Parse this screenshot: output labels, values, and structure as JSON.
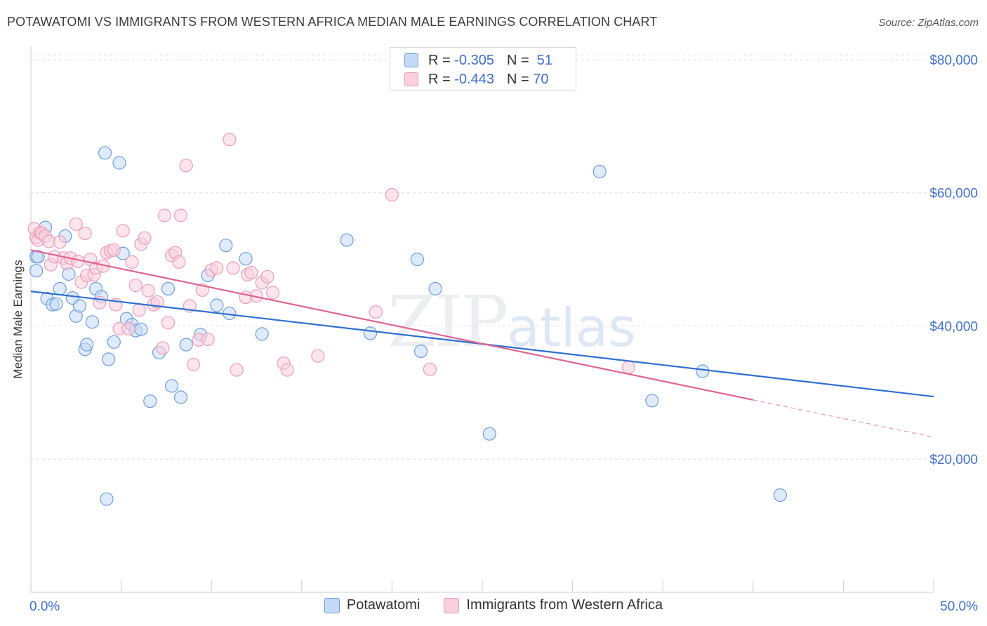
{
  "title": "POTAWATOMI VS IMMIGRANTS FROM WESTERN AFRICA MEDIAN MALE EARNINGS CORRELATION CHART",
  "source": "Source: ZipAtlas.com",
  "watermark": {
    "zip": "ZIP",
    "atlas": "atlas"
  },
  "legend": {
    "rows": [
      {
        "r_label": "R =",
        "r_value": "-0.305",
        "n_label": "N =",
        "n_value": "51",
        "color": "#a8c8ef"
      },
      {
        "r_label": "R =",
        "r_value": "-0.443",
        "n_label": "N =",
        "n_value": "70",
        "color": "#f5b8cb"
      }
    ]
  },
  "bottom_legend": [
    "Potawatomi",
    "Immigrants from Western Africa"
  ],
  "chart_data": {
    "type": "scatter",
    "xlabel": "",
    "ylabel": "Median Male Earnings",
    "xlim": [
      0,
      50
    ],
    "ylim": [
      0,
      82000
    ],
    "x_tick_labels": [
      "0.0%",
      "50.0%"
    ],
    "y_ticks": [
      20000,
      40000,
      60000,
      80000
    ],
    "y_tick_labels": [
      "$20,000",
      "$40,000",
      "$60,000",
      "$80,000"
    ],
    "grid": true,
    "series": [
      {
        "name": "Potawatomi",
        "color": "#6a9ee0",
        "fill": "#c5daf5",
        "line_color": "#2e6fd1",
        "trend": {
          "x": [
            0,
            50
          ],
          "y": [
            45200,
            29400
          ]
        },
        "points": [
          [
            0.3,
            48300
          ],
          [
            0.3,
            50400
          ],
          [
            0.8,
            54800
          ],
          [
            0.9,
            44100
          ],
          [
            1.2,
            43200
          ],
          [
            1.4,
            43300
          ],
          [
            1.6,
            45600
          ],
          [
            1.9,
            53500
          ],
          [
            2.1,
            47800
          ],
          [
            2.3,
            44200
          ],
          [
            2.5,
            41500
          ],
          [
            2.7,
            43000
          ],
          [
            3.0,
            36500
          ],
          [
            3.1,
            37200
          ],
          [
            3.4,
            40600
          ],
          [
            3.6,
            45600
          ],
          [
            3.9,
            44400
          ],
          [
            4.1,
            66000
          ],
          [
            4.3,
            35000
          ],
          [
            4.6,
            37600
          ],
          [
            4.9,
            64500
          ],
          [
            5.1,
            50900
          ],
          [
            5.3,
            41100
          ],
          [
            5.6,
            40200
          ],
          [
            5.8,
            39300
          ],
          [
            6.1,
            39500
          ],
          [
            6.6,
            28700
          ],
          [
            7.1,
            36000
          ],
          [
            7.6,
            45600
          ],
          [
            7.8,
            31000
          ],
          [
            8.3,
            29300
          ],
          [
            8.6,
            37200
          ],
          [
            9.4,
            38700
          ],
          [
            9.8,
            47600
          ],
          [
            10.3,
            43100
          ],
          [
            10.8,
            52100
          ],
          [
            11.0,
            41900
          ],
          [
            11.9,
            50100
          ],
          [
            12.8,
            38800
          ],
          [
            17.5,
            52900
          ],
          [
            18.8,
            38900
          ],
          [
            21.4,
            50000
          ],
          [
            21.6,
            36200
          ],
          [
            22.4,
            45600
          ],
          [
            25.4,
            23800
          ],
          [
            31.5,
            63200
          ],
          [
            34.4,
            28800
          ],
          [
            37.2,
            33200
          ],
          [
            41.5,
            14600
          ],
          [
            4.2,
            14000
          ],
          [
            0.4,
            50400
          ]
        ]
      },
      {
        "name": "Immigrants from Western Africa",
        "color": "#ee9cb6",
        "fill": "#f9d0dc",
        "line_color": "#e06492",
        "trend": {
          "x": [
            0,
            40
          ],
          "y": [
            51400,
            28900
          ]
        },
        "trend_dashed": {
          "x": [
            40,
            50
          ],
          "y": [
            28900,
            23300
          ]
        },
        "points": [
          [
            0.2,
            54600
          ],
          [
            0.3,
            53300
          ],
          [
            0.4,
            52900
          ],
          [
            0.5,
            54000
          ],
          [
            0.6,
            53900
          ],
          [
            0.8,
            53500
          ],
          [
            1.0,
            52700
          ],
          [
            1.1,
            49200
          ],
          [
            1.3,
            50400
          ],
          [
            1.6,
            52600
          ],
          [
            1.8,
            50200
          ],
          [
            2.0,
            49400
          ],
          [
            2.2,
            50200
          ],
          [
            2.5,
            55300
          ],
          [
            2.6,
            49700
          ],
          [
            2.8,
            46600
          ],
          [
            3.0,
            53900
          ],
          [
            3.1,
            47600
          ],
          [
            3.3,
            50000
          ],
          [
            3.5,
            47700
          ],
          [
            3.6,
            48700
          ],
          [
            3.8,
            43500
          ],
          [
            4.0,
            49000
          ],
          [
            4.2,
            51000
          ],
          [
            4.4,
            51300
          ],
          [
            4.6,
            51400
          ],
          [
            4.7,
            43200
          ],
          [
            4.9,
            39600
          ],
          [
            5.1,
            54300
          ],
          [
            5.4,
            39600
          ],
          [
            5.6,
            49600
          ],
          [
            5.8,
            46100
          ],
          [
            6.0,
            42400
          ],
          [
            6.1,
            52300
          ],
          [
            6.3,
            53200
          ],
          [
            6.5,
            45300
          ],
          [
            6.8,
            43200
          ],
          [
            7.0,
            43600
          ],
          [
            7.3,
            36700
          ],
          [
            7.4,
            56600
          ],
          [
            7.6,
            40500
          ],
          [
            7.8,
            50600
          ],
          [
            8.0,
            51000
          ],
          [
            8.2,
            49600
          ],
          [
            8.3,
            56600
          ],
          [
            8.6,
            64100
          ],
          [
            8.8,
            43000
          ],
          [
            9.0,
            34200
          ],
          [
            9.3,
            37900
          ],
          [
            9.5,
            45400
          ],
          [
            9.8,
            38000
          ],
          [
            10.0,
            48400
          ],
          [
            10.3,
            48700
          ],
          [
            11.0,
            68000
          ],
          [
            11.2,
            48700
          ],
          [
            11.4,
            33400
          ],
          [
            11.9,
            44300
          ],
          [
            12.0,
            47700
          ],
          [
            12.2,
            48000
          ],
          [
            12.5,
            44500
          ],
          [
            12.8,
            46500
          ],
          [
            13.1,
            47400
          ],
          [
            13.4,
            45000
          ],
          [
            14.0,
            34400
          ],
          [
            14.2,
            33400
          ],
          [
            15.9,
            35500
          ],
          [
            19.1,
            42100
          ],
          [
            20.0,
            59700
          ],
          [
            22.1,
            33500
          ],
          [
            33.1,
            33800
          ]
        ]
      }
    ]
  }
}
